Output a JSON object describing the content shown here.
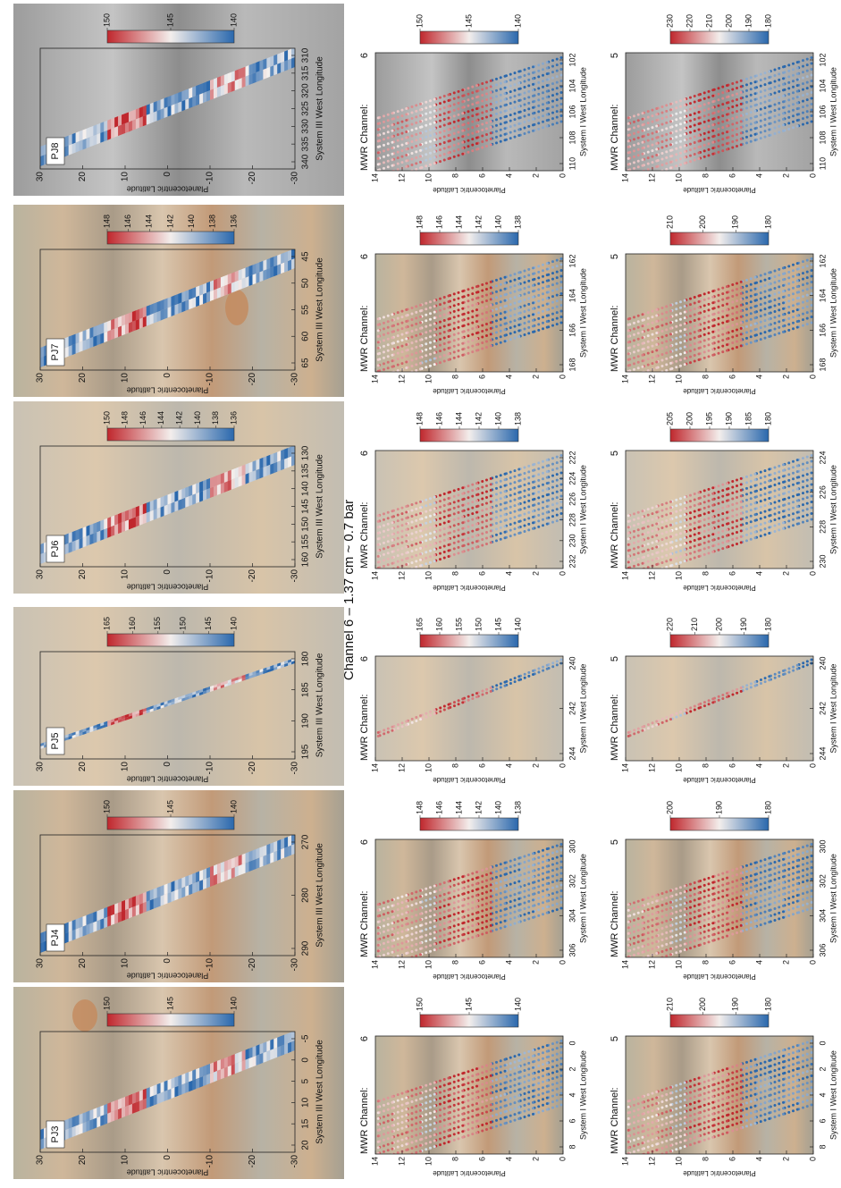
{
  "title": "Channel 6 – 1.37 cm ~ 0.7 bar",
  "panels": [
    {
      "label": "PJ3",
      "ylabel": "Planetocentric Latitude",
      "xlabel": "System III West Longitude",
      "yticks": [
        "30",
        "20",
        "10",
        "0",
        "-10",
        "-20",
        "-30"
      ],
      "xticks": [
        "20",
        "15",
        "10",
        "5",
        "0",
        "-5"
      ],
      "colorbar_ticks": [
        "150",
        "145",
        "140"
      ]
    },
    {
      "label": "PJ4",
      "ylabel": "Planetocentric Latitude",
      "xlabel": "System III West Longitude",
      "yticks": [
        "30",
        "20",
        "10",
        "0",
        "-10",
        "-20",
        "-30"
      ],
      "xticks": [
        "290",
        "280",
        "270"
      ],
      "colorbar_ticks": [
        "150",
        "145",
        "140"
      ]
    },
    {
      "label": "PJ5",
      "ylabel": "Planetocentric Latitude",
      "xlabel": "System III West Longitude",
      "yticks": [
        "30",
        "20",
        "10",
        "0",
        "-10",
        "-20",
        "-30"
      ],
      "xticks": [
        "195",
        "190",
        "185",
        "180"
      ],
      "colorbar_ticks": [
        "165",
        "160",
        "155",
        "150",
        "145",
        "140"
      ]
    },
    {
      "label": "PJ6",
      "ylabel": "Planetocentric Latitude",
      "xlabel": "System III West Longitude",
      "yticks": [
        "30",
        "20",
        "10",
        "0",
        "-10",
        "-20",
        "-30"
      ],
      "xticks": [
        "160",
        "155",
        "150",
        "145",
        "140",
        "135",
        "130"
      ],
      "colorbar_ticks": [
        "150",
        "148",
        "146",
        "144",
        "142",
        "140",
        "138",
        "136"
      ]
    },
    {
      "label": "PJ7",
      "ylabel": "Planetocentric Latitude",
      "xlabel": "System III West Longitude",
      "yticks": [
        "30",
        "20",
        "10",
        "0",
        "-10",
        "-20",
        "-30"
      ],
      "xticks": [
        "65",
        "60",
        "55",
        "50",
        "45"
      ],
      "colorbar_ticks": [
        "148",
        "146",
        "144",
        "142",
        "140",
        "138",
        "136"
      ]
    },
    {
      "label": "PJ8",
      "ylabel": "Planetocentric Latitude",
      "xlabel": "System III West Longitude",
      "yticks": [
        "30",
        "20",
        "10",
        "0",
        "-10",
        "-20",
        "-30"
      ],
      "xticks": [
        "340",
        "335",
        "330",
        "325",
        "320",
        "315",
        "310"
      ],
      "colorbar_ticks": [
        "150",
        "145",
        "140"
      ]
    }
  ],
  "channel_6_panels": [
    {
      "channel_label": "MWR Channel:",
      "channel": "6",
      "ylabel": "Planetocentric Latitude",
      "xlabel": "System I West Longitude",
      "yticks": [
        "14",
        "12",
        "10",
        "8",
        "6",
        "4",
        "2",
        "0"
      ],
      "xticks": [
        "8",
        "6",
        "4",
        "2",
        "0"
      ],
      "colorbar_ticks": [
        "150",
        "145",
        "140"
      ]
    },
    {
      "channel_label": "MWR Channel:",
      "channel": "6",
      "ylabel": "Planetocentric Latitude",
      "xlabel": "System I West Longitude",
      "yticks": [
        "14",
        "12",
        "10",
        "8",
        "6",
        "4",
        "2",
        "0"
      ],
      "xticks": [
        "306",
        "304",
        "302",
        "300"
      ],
      "colorbar_ticks": [
        "148",
        "146",
        "144",
        "142",
        "140",
        "138"
      ]
    },
    {
      "channel_label": "MWR Channel:",
      "channel": "6",
      "ylabel": "Planetocentric Latitude",
      "xlabel": "System I West Longitude",
      "yticks": [
        "14",
        "12",
        "10",
        "8",
        "6",
        "4",
        "2",
        "0"
      ],
      "xticks": [
        "244",
        "242",
        "240"
      ],
      "colorbar_ticks": [
        "165",
        "160",
        "155",
        "150",
        "145",
        "140"
      ]
    },
    {
      "channel_label": "MWR Channel:",
      "channel": "6",
      "ylabel": "Planetocentric Latitude",
      "xlabel": "System I West Longitude",
      "yticks": [
        "14",
        "12",
        "10",
        "8",
        "6",
        "4",
        "2",
        "0"
      ],
      "xticks": [
        "232",
        "230",
        "228",
        "226",
        "224",
        "222"
      ],
      "colorbar_ticks": [
        "148",
        "146",
        "144",
        "142",
        "140",
        "138"
      ]
    },
    {
      "channel_label": "MWR Channel:",
      "channel": "6",
      "ylabel": "Planetocentric Latitude",
      "xlabel": "System I West Longitude",
      "yticks": [
        "14",
        "12",
        "10",
        "8",
        "6",
        "4",
        "2",
        "0"
      ],
      "xticks": [
        "168",
        "166",
        "164",
        "162"
      ],
      "colorbar_ticks": [
        "148",
        "146",
        "144",
        "142",
        "140",
        "138"
      ]
    },
    {
      "channel_label": "MWR Channel:",
      "channel": "6",
      "ylabel": "Planetocentric Latitude",
      "xlabel": "System I West Longitude",
      "yticks": [
        "14",
        "12",
        "10",
        "8",
        "6",
        "4",
        "2",
        "0"
      ],
      "xticks": [
        "110",
        "108",
        "106",
        "104",
        "102"
      ],
      "colorbar_ticks": [
        "150",
        "145",
        "140"
      ]
    }
  ],
  "channel_5_panels": [
    {
      "channel_label": "MWR Channel:",
      "channel": "5",
      "ylabel": "Planetocentric Latitude",
      "xlabel": "System I West Longitude",
      "yticks": [
        "14",
        "12",
        "10",
        "8",
        "6",
        "4",
        "2",
        "0"
      ],
      "xticks": [
        "8",
        "6",
        "4",
        "2",
        "0"
      ],
      "colorbar_ticks": [
        "210",
        "200",
        "190",
        "180"
      ]
    },
    {
      "channel_label": "MWR Channel:",
      "channel": "5",
      "ylabel": "Planetocentric Latitude",
      "xlabel": "System I West Longitude",
      "yticks": [
        "14",
        "12",
        "10",
        "8",
        "6",
        "4",
        "2",
        "0"
      ],
      "xticks": [
        "306",
        "304",
        "302",
        "300"
      ],
      "colorbar_ticks": [
        "200",
        "190",
        "180"
      ]
    },
    {
      "channel_label": "MWR Channel:",
      "channel": "5",
      "ylabel": "Planetocentric Latitude",
      "xlabel": "System I West Longitude",
      "yticks": [
        "14",
        "12",
        "10",
        "8",
        "6",
        "4",
        "2",
        "0"
      ],
      "xticks": [
        "244",
        "242",
        "240"
      ],
      "colorbar_ticks": [
        "220",
        "210",
        "200",
        "190",
        "180"
      ]
    },
    {
      "channel_label": "MWR Channel:",
      "channel": "5",
      "ylabel": "Planetocentric Latitude",
      "xlabel": "System I West Longitude",
      "yticks": [
        "14",
        "12",
        "10",
        "8",
        "6",
        "4",
        "2",
        "0"
      ],
      "xticks": [
        "230",
        "228",
        "226",
        "224"
      ],
      "colorbar_ticks": [
        "205",
        "200",
        "195",
        "190",
        "185",
        "180"
      ]
    },
    {
      "channel_label": "MWR Channel:",
      "channel": "5",
      "ylabel": "Planetocentric Latitude",
      "xlabel": "System I West Longitude",
      "yticks": [
        "14",
        "12",
        "10",
        "8",
        "6",
        "4",
        "2",
        "0"
      ],
      "xticks": [
        "168",
        "166",
        "164",
        "162"
      ],
      "colorbar_ticks": [
        "210",
        "200",
        "190",
        "180"
      ]
    },
    {
      "channel_label": "MWR Channel:",
      "channel": "5",
      "ylabel": "Planetocentric Latitude",
      "xlabel": "System I West Longitude",
      "yticks": [
        "14",
        "12",
        "10",
        "8",
        "6",
        "4",
        "2",
        "0"
      ],
      "xticks": [
        "110",
        "108",
        "106",
        "104",
        "102"
      ],
      "colorbar_ticks": [
        "230",
        "220",
        "210",
        "200",
        "190",
        "180"
      ]
    }
  ]
}
